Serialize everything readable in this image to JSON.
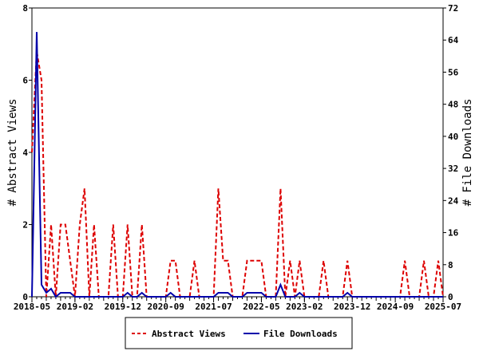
{
  "chart_data": {
    "type": "line",
    "title": "",
    "xlabel": "",
    "ylabel": "# Abstract Views",
    "y2label": "# File Downloads",
    "ylim": [
      0,
      8
    ],
    "y2lim": [
      0,
      72
    ],
    "yticks": [
      0,
      2,
      4,
      6,
      8
    ],
    "y2ticks": [
      0,
      8,
      16,
      24,
      32,
      40,
      48,
      56,
      64,
      72
    ],
    "x_unit": "months since 2018-05",
    "xlim": [
      0,
      86
    ],
    "xticks": [
      {
        "month": 0,
        "label": "2018-05"
      },
      {
        "month": 9,
        "label": "2019-02"
      },
      {
        "month": 19,
        "label": "2019-12"
      },
      {
        "month": 28,
        "label": "2020-09"
      },
      {
        "month": 38,
        "label": "2021-07"
      },
      {
        "month": 48,
        "label": "2022-05"
      },
      {
        "month": 57,
        "label": "2023-02"
      },
      {
        "month": 67,
        "label": "2023-12"
      },
      {
        "month": 76,
        "label": "2024-09"
      },
      {
        "month": 86,
        "label": "2025-07"
      }
    ],
    "legend_position": "bottom",
    "series": [
      {
        "name": "Abstract Views",
        "axis": "left",
        "color": "#dd0000",
        "dash": true,
        "values": [
          4,
          6.8,
          6,
          0,
          2,
          0,
          2,
          2,
          1,
          0,
          2,
          3,
          0,
          2,
          0,
          0,
          0,
          2,
          0,
          0,
          2,
          0,
          0,
          2,
          0,
          0,
          0,
          0,
          0,
          1,
          1,
          0,
          0,
          0,
          1,
          0,
          0,
          0,
          0,
          3,
          1,
          1,
          0,
          0,
          0,
          1,
          1,
          1,
          1,
          0,
          0,
          0,
          3,
          0,
          1,
          0,
          1,
          0,
          0,
          0,
          0,
          1,
          0,
          0,
          0,
          0,
          1,
          0,
          0,
          0,
          0,
          0,
          0,
          0,
          0,
          0,
          0,
          0,
          1,
          0,
          0,
          0,
          1,
          0,
          0,
          1,
          0
        ]
      },
      {
        "name": "File Downloads",
        "axis": "right",
        "color": "#0000aa",
        "dash": false,
        "values": [
          0,
          66,
          3,
          1,
          2,
          0,
          1,
          1,
          1,
          0,
          0,
          0,
          0,
          0,
          0,
          0,
          0,
          0,
          0,
          0,
          1,
          0,
          0,
          1,
          0,
          0,
          0,
          0,
          0,
          1,
          0,
          0,
          0,
          0,
          0,
          0,
          0,
          0,
          0,
          1,
          1,
          1,
          0,
          0,
          0,
          1,
          1,
          1,
          1,
          0,
          0,
          0,
          3,
          0,
          0,
          0,
          1,
          0,
          0,
          0,
          0,
          0,
          0,
          0,
          0,
          0,
          1,
          0,
          0,
          0,
          0,
          0,
          0,
          0,
          0,
          0,
          0,
          0,
          0,
          0,
          0,
          0,
          0,
          0,
          0,
          0,
          0
        ]
      }
    ]
  }
}
